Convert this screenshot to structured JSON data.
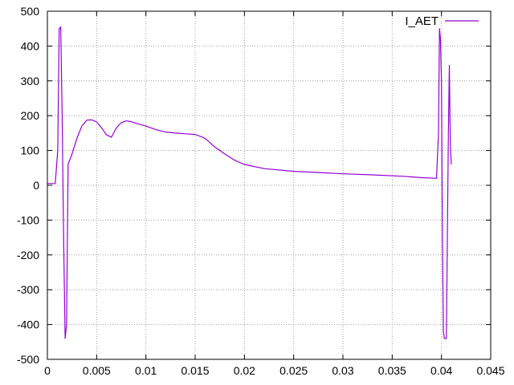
{
  "chart_data": {
    "type": "line",
    "title": "",
    "xlabel": "",
    "ylabel": "",
    "xlim": [
      0,
      0.045
    ],
    "ylim": [
      -500,
      500
    ],
    "x_ticks": [
      0,
      0.005,
      0.01,
      0.015,
      0.02,
      0.025,
      0.03,
      0.035,
      0.04,
      0.045
    ],
    "x_tick_labels": [
      "0",
      "0.005",
      "0.01",
      "0.015",
      "0.02",
      "0.025",
      "0.03",
      "0.035",
      "0.04",
      "0.045"
    ],
    "y_ticks": [
      -500,
      -400,
      -300,
      -200,
      -100,
      0,
      100,
      200,
      300,
      400,
      500
    ],
    "y_tick_labels": [
      "-500",
      "-400",
      "-300",
      "-200",
      "-100",
      "0",
      "100",
      "200",
      "300",
      "400",
      "500"
    ],
    "grid": true,
    "legend_position": "top-right",
    "series": [
      {
        "name": "I_AET",
        "color": "#9400d3",
        "x": [
          0,
          0.0008,
          0.00105,
          0.0012,
          0.00135,
          0.0015,
          0.00165,
          0.0018,
          0.00195,
          0.0021,
          0.0025,
          0.003,
          0.0035,
          0.004,
          0.0045,
          0.005,
          0.0055,
          0.006,
          0.0065,
          0.007,
          0.0075,
          0.008,
          0.0085,
          0.009,
          0.01,
          0.011,
          0.012,
          0.013,
          0.014,
          0.015,
          0.016,
          0.017,
          0.018,
          0.019,
          0.02,
          0.022,
          0.025,
          0.028,
          0.03,
          0.033,
          0.036,
          0.038,
          0.0395,
          0.0397,
          0.0398,
          0.0399,
          0.04,
          0.0401,
          0.0402,
          0.0403,
          0.0405,
          0.0407,
          0.0408,
          0.0409,
          0.041
        ],
        "y": [
          5,
          5,
          100,
          450,
          455,
          200,
          -150,
          -440,
          -400,
          60,
          90,
          135,
          170,
          187,
          188,
          182,
          165,
          145,
          138,
          165,
          180,
          185,
          183,
          178,
          170,
          160,
          153,
          150,
          148,
          146,
          135,
          110,
          90,
          72,
          60,
          48,
          40,
          36,
          33,
          30,
          26,
          22,
          20,
          150,
          450,
          420,
          300,
          -150,
          -420,
          -440,
          -440,
          150,
          345,
          120,
          60
        ]
      }
    ]
  }
}
